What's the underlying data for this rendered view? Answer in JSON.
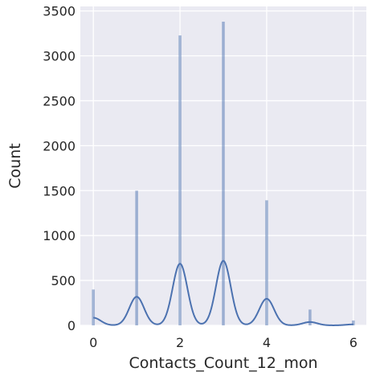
{
  "chart_data": {
    "type": "bar",
    "xlabel": "Contacts_Count_12_mon",
    "ylabel": "Count",
    "xlim": [
      -0.3,
      6.3
    ],
    "ylim": [
      0,
      3550
    ],
    "xticks": [
      0,
      2,
      4,
      6
    ],
    "yticks": [
      0,
      500,
      1000,
      1500,
      2000,
      2500,
      3000,
      3500
    ],
    "grid": true,
    "bar_color": "#4c72b0",
    "kde_color": "#4c72b0",
    "background_color": "#eaeaf2",
    "bars": [
      {
        "x": 0,
        "value": 399
      },
      {
        "x": 1,
        "value": 1499
      },
      {
        "x": 2,
        "value": 3227
      },
      {
        "x": 3,
        "value": 3380
      },
      {
        "x": 4,
        "value": 1392
      },
      {
        "x": 5,
        "value": 176
      },
      {
        "x": 6,
        "value": 54
      }
    ],
    "kde_peaks": [
      {
        "x": 0,
        "value": 85
      },
      {
        "x": 1,
        "value": 318
      },
      {
        "x": 2,
        "value": 686
      },
      {
        "x": 3,
        "value": 718
      },
      {
        "x": 4,
        "value": 296
      },
      {
        "x": 5,
        "value": 37
      },
      {
        "x": 6,
        "value": 11
      }
    ]
  }
}
